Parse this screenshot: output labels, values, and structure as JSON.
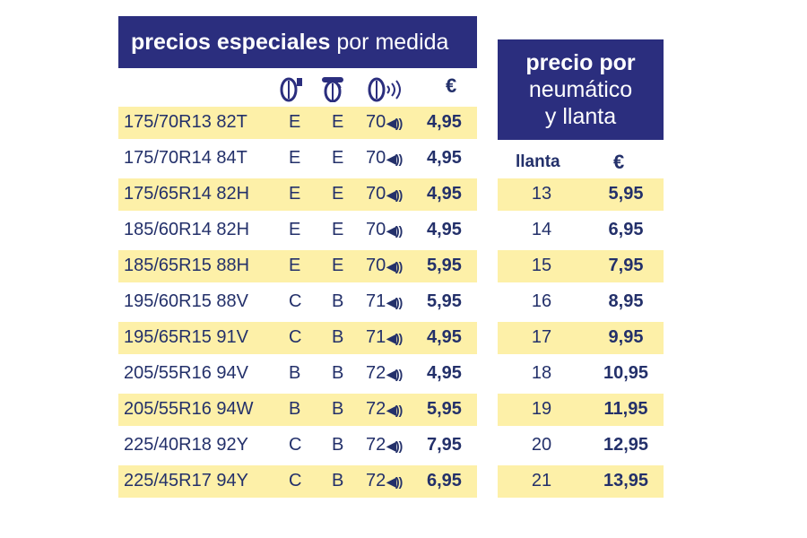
{
  "left_table": {
    "title_bold": "precios especiales",
    "title_light": "por medida",
    "icons": [
      "fuel-efficiency-tire-icon",
      "wet-grip-tire-icon",
      "noise-tire-icon"
    ],
    "price_header": "€",
    "rows": [
      {
        "size": "175/70R13 82T",
        "fuel": "E",
        "wet": "E",
        "noise": "70",
        "price": "4,95"
      },
      {
        "size": "175/70R14 84T",
        "fuel": "E",
        "wet": "E",
        "noise": "70",
        "price": "4,95"
      },
      {
        "size": "175/65R14 82H",
        "fuel": "E",
        "wet": "E",
        "noise": "70",
        "price": "4,95"
      },
      {
        "size": "185/60R14 82H",
        "fuel": "E",
        "wet": "E",
        "noise": "70",
        "price": "4,95"
      },
      {
        "size": "185/65R15 88H",
        "fuel": "E",
        "wet": "E",
        "noise": "70",
        "price": "5,95"
      },
      {
        "size": "195/60R15 88V",
        "fuel": "C",
        "wet": "B",
        "noise": "71",
        "price": "5,95"
      },
      {
        "size": "195/65R15 91V",
        "fuel": "C",
        "wet": "B",
        "noise": "71",
        "price": "4,95"
      },
      {
        "size": "205/55R16 94V",
        "fuel": "B",
        "wet": "B",
        "noise": "72",
        "price": "4,95"
      },
      {
        "size": "205/55R16 94W",
        "fuel": "B",
        "wet": "B",
        "noise": "72",
        "price": "5,95"
      },
      {
        "size": "225/40R18 92Y",
        "fuel": "C",
        "wet": "B",
        "noise": "72",
        "price": "7,95"
      },
      {
        "size": "225/45R17 94Y",
        "fuel": "C",
        "wet": "B",
        "noise": "72",
        "price": "6,95"
      }
    ]
  },
  "right_table": {
    "title_line1": "precio por",
    "title_line2": "neumático",
    "title_line3": "y llanta",
    "col_rim": "llanta",
    "col_price": "€",
    "rows": [
      {
        "rim": "13",
        "price": "5,95"
      },
      {
        "rim": "14",
        "price": "6,95"
      },
      {
        "rim": "15",
        "price": "7,95"
      },
      {
        "rim": "16",
        "price": "8,95"
      },
      {
        "rim": "17",
        "price": "9,95"
      },
      {
        "rim": "18",
        "price": "10,95"
      },
      {
        "rim": "19",
        "price": "11,95"
      },
      {
        "rim": "20",
        "price": "12,95"
      },
      {
        "rim": "21",
        "price": "13,95"
      }
    ]
  },
  "colors": {
    "navy": "#2b2e7e",
    "stripe": "#fdf0a8",
    "text": "#23306a"
  }
}
